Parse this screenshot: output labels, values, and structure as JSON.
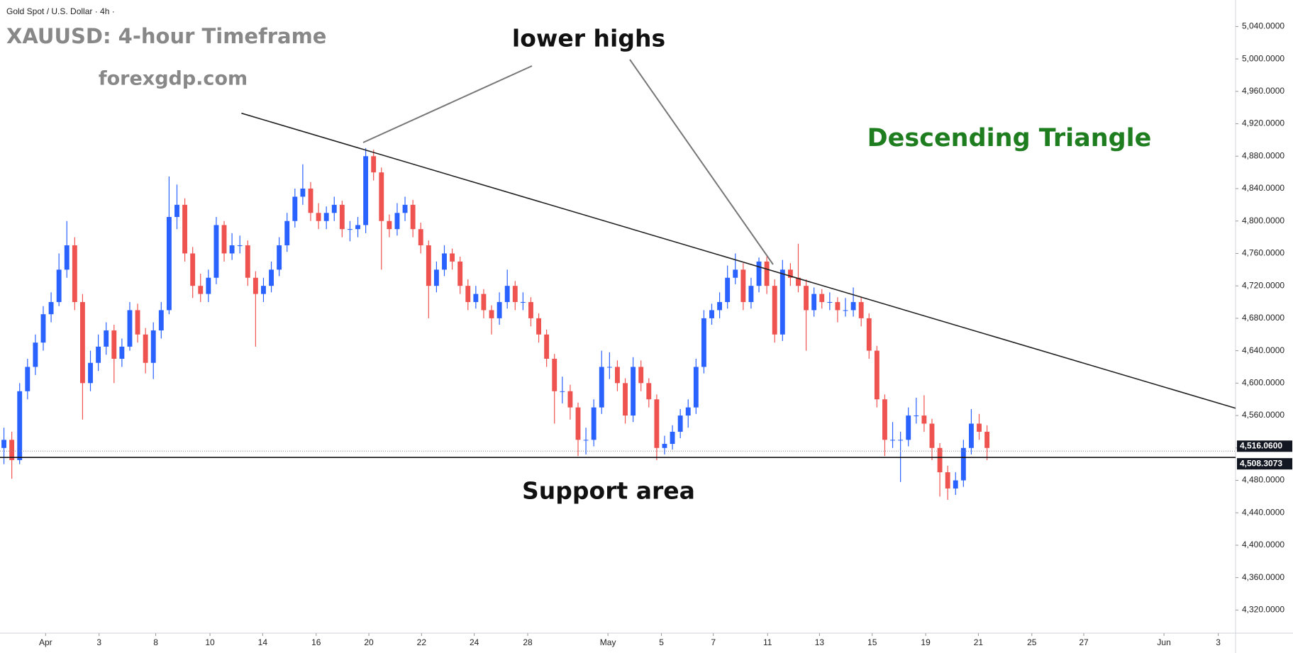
{
  "header": "Gold Spot / U.S. Dollar · 4h ·",
  "chart_data": {
    "type": "candlestick",
    "title": "XAUUSD: 4-hour Timeframe",
    "subtitle": "forexgdp.com",
    "annotations": [
      "lower highs",
      "Descending Triangle",
      "Support area"
    ],
    "up_color": "#2962ff",
    "down_color": "#ef5350",
    "xlim": [
      0,
      157.1
    ],
    "ylim": [
      4291.5,
      5072.7
    ],
    "candles": [
      [
        4520,
        4545,
        4500,
        4530
      ],
      [
        4530,
        4540,
        4482,
        4505
      ],
      [
        4505,
        4600,
        4500,
        4590
      ],
      [
        4590,
        4630,
        4580,
        4620
      ],
      [
        4620,
        4660,
        4610,
        4650
      ],
      [
        4650,
        4695,
        4640,
        4685
      ],
      [
        4685,
        4712,
        4675,
        4700
      ],
      [
        4700,
        4760,
        4695,
        4740
      ],
      [
        4740,
        4800,
        4730,
        4770
      ],
      [
        4770,
        4780,
        4690,
        4700
      ],
      [
        4700,
        4710,
        4555,
        4600
      ],
      [
        4600,
        4640,
        4590,
        4625
      ],
      [
        4625,
        4660,
        4615,
        4645
      ],
      [
        4645,
        4675,
        4635,
        4665
      ],
      [
        4665,
        4672,
        4600,
        4630
      ],
      [
        4630,
        4655,
        4620,
        4645
      ],
      [
        4645,
        4700,
        4640,
        4690
      ],
      [
        4690,
        4698,
        4650,
        4660
      ],
      [
        4660,
        4668,
        4612,
        4625
      ],
      [
        4625,
        4675,
        4605,
        4665
      ],
      [
        4665,
        4700,
        4655,
        4690
      ],
      [
        4690,
        4855,
        4685,
        4805
      ],
      [
        4805,
        4845,
        4790,
        4820
      ],
      [
        4820,
        4828,
        4750,
        4760
      ],
      [
        4760,
        4768,
        4705,
        4720
      ],
      [
        4720,
        4735,
        4700,
        4710
      ],
      [
        4710,
        4740,
        4700,
        4730
      ],
      [
        4730,
        4805,
        4722,
        4795
      ],
      [
        4795,
        4800,
        4750,
        4760
      ],
      [
        4760,
        4785,
        4752,
        4770
      ],
      [
        4770,
        4782,
        4760,
        4770
      ],
      [
        4770,
        4776,
        4720,
        4730
      ],
      [
        4730,
        4738,
        4645,
        4710
      ],
      [
        4710,
        4730,
        4700,
        4720
      ],
      [
        4720,
        4750,
        4712,
        4740
      ],
      [
        4740,
        4780,
        4732,
        4770
      ],
      [
        4770,
        4810,
        4762,
        4800
      ],
      [
        4800,
        4840,
        4792,
        4830
      ],
      [
        4830,
        4870,
        4820,
        4840
      ],
      [
        4840,
        4848,
        4800,
        4810
      ],
      [
        4810,
        4822,
        4790,
        4800
      ],
      [
        4800,
        4818,
        4790,
        4810
      ],
      [
        4810,
        4830,
        4800,
        4820
      ],
      [
        4820,
        4825,
        4780,
        4790
      ],
      [
        4790,
        4800,
        4775,
        4790
      ],
      [
        4790,
        4805,
        4780,
        4795
      ],
      [
        4795,
        4890,
        4785,
        4880
      ],
      [
        4880,
        4888,
        4850,
        4860
      ],
      [
        4860,
        4866,
        4740,
        4800
      ],
      [
        4800,
        4808,
        4780,
        4790
      ],
      [
        4790,
        4822,
        4782,
        4810
      ],
      [
        4810,
        4830,
        4800,
        4820
      ],
      [
        4820,
        4826,
        4780,
        4790
      ],
      [
        4790,
        4798,
        4760,
        4770
      ],
      [
        4770,
        4776,
        4680,
        4720
      ],
      [
        4720,
        4750,
        4712,
        4740
      ],
      [
        4740,
        4770,
        4732,
        4760
      ],
      [
        4760,
        4766,
        4740,
        4750
      ],
      [
        4750,
        4756,
        4710,
        4720
      ],
      [
        4720,
        4728,
        4690,
        4700
      ],
      [
        4700,
        4720,
        4692,
        4710
      ],
      [
        4710,
        4716,
        4680,
        4690
      ],
      [
        4690,
        4696,
        4660,
        4680
      ],
      [
        4680,
        4712,
        4672,
        4700
      ],
      [
        4700,
        4740,
        4692,
        4720
      ],
      [
        4720,
        4726,
        4690,
        4700
      ],
      [
        4700,
        4712,
        4690,
        4700
      ],
      [
        4700,
        4706,
        4670,
        4680
      ],
      [
        4680,
        4686,
        4650,
        4660
      ],
      [
        4660,
        4666,
        4620,
        4630
      ],
      [
        4630,
        4636,
        4550,
        4590
      ],
      [
        4590,
        4608,
        4575,
        4590
      ],
      [
        4590,
        4598,
        4555,
        4570
      ],
      [
        4570,
        4576,
        4510,
        4530
      ],
      [
        4530,
        4545,
        4512,
        4530
      ],
      [
        4530,
        4580,
        4522,
        4570
      ],
      [
        4570,
        4640,
        4562,
        4620
      ],
      [
        4620,
        4638,
        4605,
        4620
      ],
      [
        4620,
        4628,
        4590,
        4600
      ],
      [
        4600,
        4606,
        4550,
        4560
      ],
      [
        4560,
        4632,
        4552,
        4620
      ],
      [
        4620,
        4628,
        4590,
        4600
      ],
      [
        4600,
        4606,
        4570,
        4580
      ],
      [
        4580,
        4586,
        4505,
        4520
      ],
      [
        4520,
        4535,
        4512,
        4525
      ],
      [
        4525,
        4548,
        4518,
        4540
      ],
      [
        4540,
        4568,
        4532,
        4560
      ],
      [
        4560,
        4580,
        4545,
        4570
      ],
      [
        4570,
        4630,
        4562,
        4620
      ],
      [
        4620,
        4690,
        4612,
        4680
      ],
      [
        4680,
        4698,
        4672,
        4690
      ],
      [
        4690,
        4712,
        4680,
        4700
      ],
      [
        4700,
        4745,
        4692,
        4730
      ],
      [
        4730,
        4760,
        4722,
        4740
      ],
      [
        4740,
        4748,
        4690,
        4700
      ],
      [
        4700,
        4730,
        4692,
        4720
      ],
      [
        4720,
        4755,
        4712,
        4750
      ],
      [
        4750,
        4756,
        4710,
        4720
      ],
      [
        4720,
        4728,
        4650,
        4660
      ],
      [
        4660,
        4752,
        4652,
        4740
      ],
      [
        4740,
        4748,
        4720,
        4730
      ],
      [
        4730,
        4772,
        4712,
        4720
      ],
      [
        4720,
        4728,
        4640,
        4690
      ],
      [
        4690,
        4718,
        4682,
        4710
      ],
      [
        4710,
        4716,
        4692,
        4700
      ],
      [
        4700,
        4712,
        4690,
        4700
      ],
      [
        4700,
        4706,
        4675,
        4690
      ],
      [
        4690,
        4705,
        4682,
        4690
      ],
      [
        4690,
        4718,
        4682,
        4700
      ],
      [
        4700,
        4706,
        4670,
        4680
      ],
      [
        4680,
        4686,
        4630,
        4640
      ],
      [
        4640,
        4646,
        4570,
        4580
      ],
      [
        4580,
        4586,
        4510,
        4530
      ],
      [
        4530,
        4552,
        4520,
        4530
      ],
      [
        4530,
        4540,
        4478,
        4530
      ],
      [
        4530,
        4570,
        4522,
        4560
      ],
      [
        4560,
        4582,
        4550,
        4560
      ],
      [
        4560,
        4585,
        4540,
        4550
      ],
      [
        4550,
        4556,
        4505,
        4520
      ],
      [
        4520,
        4526,
        4460,
        4490
      ],
      [
        4490,
        4498,
        4456,
        4470
      ],
      [
        4470,
        4490,
        4462,
        4480
      ],
      [
        4480,
        4530,
        4472,
        4520
      ],
      [
        4520,
        4568,
        4512,
        4550
      ],
      [
        4550,
        4562,
        4530,
        4540
      ],
      [
        4540,
        4548,
        4505,
        4520
      ]
    ],
    "trendline": {
      "x": [
        30.7,
        157.1
      ],
      "y": [
        4933,
        4569
      ]
    },
    "support": {
      "value": 4508.3073,
      "label": "4,508.3073"
    },
    "last_price": {
      "value": 4516.06,
      "label": "4,516.0600"
    },
    "xticks": [
      {
        "value": 5.8,
        "label": "Apr"
      },
      {
        "value": 12.6,
        "label": "3"
      },
      {
        "value": 19.8,
        "label": "8"
      },
      {
        "value": 26.7,
        "label": "10"
      },
      {
        "value": 33.4,
        "label": "14"
      },
      {
        "value": 40.2,
        "label": "16"
      },
      {
        "value": 46.9,
        "label": "20"
      },
      {
        "value": 53.6,
        "label": "22"
      },
      {
        "value": 60.3,
        "label": "24"
      },
      {
        "value": 67.1,
        "label": "28"
      },
      {
        "value": 77.3,
        "label": "May"
      },
      {
        "value": 84.1,
        "label": "5"
      },
      {
        "value": 90.7,
        "label": "7"
      },
      {
        "value": 97.6,
        "label": "11"
      },
      {
        "value": 104.2,
        "label": "13"
      },
      {
        "value": 110.9,
        "label": "15"
      },
      {
        "value": 117.7,
        "label": "19"
      },
      {
        "value": 124.4,
        "label": "21"
      },
      {
        "value": 131.2,
        "label": "25"
      },
      {
        "value": 137.8,
        "label": "27"
      },
      {
        "value": 148.0,
        "label": "Jun"
      },
      {
        "value": 154.9,
        "label": "3"
      }
    ],
    "yticks": [
      {
        "value": 4320,
        "label": "4,320.0000"
      },
      {
        "value": 4360,
        "label": "4,360.0000"
      },
      {
        "value": 4400,
        "label": "4,400.0000"
      },
      {
        "value": 4440,
        "label": "4,440.0000"
      },
      {
        "value": 4480,
        "label": "4,480.0000"
      },
      {
        "value": 4520,
        "label": "4,520.0000"
      },
      {
        "value": 4560,
        "label": "4,560.0000"
      },
      {
        "value": 4600,
        "label": "4,600.0000"
      },
      {
        "value": 4640,
        "label": "4,640.0000"
      },
      {
        "value": 4680,
        "label": "4,680.0000"
      },
      {
        "value": 4720,
        "label": "4,720.0000"
      },
      {
        "value": 4760,
        "label": "4,760.0000"
      },
      {
        "value": 4800,
        "label": "4,800.0000"
      },
      {
        "value": 4840,
        "label": "4,840.0000"
      },
      {
        "value": 4880,
        "label": "4,880.0000"
      },
      {
        "value": 4920,
        "label": "4,920.0000"
      },
      {
        "value": 4960,
        "label": "4,960.0000"
      },
      {
        "value": 5000,
        "label": "5,000.0000"
      },
      {
        "value": 5040,
        "label": "5,040.0000"
      }
    ]
  }
}
